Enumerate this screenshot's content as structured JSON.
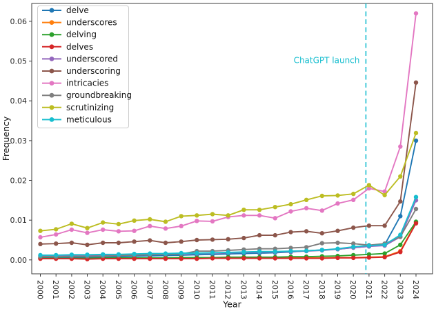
{
  "figure": {
    "background": "#ffffff"
  },
  "chart_data": {
    "type": "line",
    "title": "",
    "xlabel": "Year",
    "ylabel": "Frequency",
    "grid": false,
    "legend_position": "upper-left",
    "xlim": [
      1999.45,
      2025.06
    ],
    "ylim": [
      -0.0035,
      0.0645
    ],
    "x": [
      2000,
      2001,
      2002,
      2003,
      2004,
      2005,
      2006,
      2007,
      2008,
      2009,
      2010,
      2011,
      2012,
      2013,
      2014,
      2015,
      2016,
      2017,
      2018,
      2019,
      2020,
      2021,
      2022,
      2023,
      2024
    ],
    "x_tick_labels": [
      "2000",
      "2001",
      "2002",
      "2003",
      "2004",
      "2005",
      "2006",
      "2007",
      "2008",
      "2009",
      "2010",
      "2011",
      "2012",
      "2013",
      "2014",
      "2015",
      "2016",
      "2017",
      "2018",
      "2019",
      "2020",
      "2021",
      "2022",
      "2023",
      "2024"
    ],
    "y_ticks": [
      0.0,
      0.01,
      0.02,
      0.03,
      0.04,
      0.05,
      0.06
    ],
    "y_tick_labels": [
      "0.00",
      "0.01",
      "0.02",
      "0.03",
      "0.04",
      "0.05",
      "0.06"
    ],
    "annotation": {
      "text": "ChatGPT launch",
      "color": "#17becf",
      "x": 2020.8,
      "label_y": 0.0495,
      "style": "dashed-vertical"
    },
    "series": [
      {
        "name": "delve",
        "color": "#1f77b4",
        "values": [
          0.0006,
          0.0006,
          0.0007,
          0.0007,
          0.0007,
          0.0008,
          0.0009,
          0.001,
          0.0011,
          0.0012,
          0.0013,
          0.0014,
          0.0015,
          0.0016,
          0.0017,
          0.0018,
          0.002,
          0.0023,
          0.0025,
          0.0027,
          0.0031,
          0.0034,
          0.0038,
          0.011,
          0.03
        ]
      },
      {
        "name": "underscores",
        "color": "#ff7f0e",
        "values": [
          0.0004,
          0.0004,
          0.0004,
          0.0003,
          0.0004,
          0.0004,
          0.0004,
          0.0004,
          0.0004,
          0.0004,
          0.0004,
          0.0005,
          0.0005,
          0.0005,
          0.0005,
          0.0005,
          0.0005,
          0.0005,
          0.0005,
          0.0006,
          0.0006,
          0.0007,
          0.0008,
          0.0022,
          0.0094
        ]
      },
      {
        "name": "delving",
        "color": "#2ca02c",
        "values": [
          0.0004,
          0.0004,
          0.0004,
          0.0004,
          0.0005,
          0.0005,
          0.0005,
          0.0005,
          0.0005,
          0.0006,
          0.0006,
          0.0006,
          0.0007,
          0.0007,
          0.0007,
          0.0007,
          0.0008,
          0.0008,
          0.0009,
          0.001,
          0.0012,
          0.0014,
          0.0016,
          0.0038,
          0.0096
        ]
      },
      {
        "name": "delves",
        "color": "#d62728",
        "values": [
          0.0003,
          0.0003,
          0.0003,
          0.0002,
          0.0003,
          0.0003,
          0.0003,
          0.0003,
          0.0003,
          0.0003,
          0.0003,
          0.0004,
          0.0004,
          0.0004,
          0.0004,
          0.0004,
          0.0004,
          0.0004,
          0.0004,
          0.0005,
          0.0005,
          0.0006,
          0.0007,
          0.002,
          0.0092
        ]
      },
      {
        "name": "underscored",
        "color": "#9467bd",
        "values": [
          0.0011,
          0.0011,
          0.0012,
          0.0012,
          0.0013,
          0.0013,
          0.0014,
          0.0015,
          0.0015,
          0.0016,
          0.0016,
          0.0017,
          0.0018,
          0.0019,
          0.002,
          0.002,
          0.0021,
          0.0022,
          0.0024,
          0.0027,
          0.0031,
          0.0034,
          0.0036,
          0.0058,
          0.015
        ]
      },
      {
        "name": "underscoring",
        "color": "#8c564b",
        "values": [
          0.004,
          0.0041,
          0.0043,
          0.0038,
          0.0043,
          0.0043,
          0.0046,
          0.0049,
          0.0043,
          0.0046,
          0.005,
          0.0051,
          0.0052,
          0.0055,
          0.0062,
          0.0062,
          0.007,
          0.0072,
          0.0067,
          0.0073,
          0.0081,
          0.0086,
          0.0086,
          0.0147,
          0.0446
        ]
      },
      {
        "name": "intricacies",
        "color": "#e377c2",
        "values": [
          0.0057,
          0.0064,
          0.0076,
          0.0068,
          0.0076,
          0.0072,
          0.0073,
          0.0085,
          0.0079,
          0.0085,
          0.0098,
          0.0097,
          0.0108,
          0.0112,
          0.0112,
          0.0105,
          0.0122,
          0.013,
          0.0124,
          0.0142,
          0.0151,
          0.018,
          0.0172,
          0.0285,
          0.062
        ]
      },
      {
        "name": "groundbreaking",
        "color": "#7f7f7f",
        "values": [
          0.0008,
          0.0008,
          0.0009,
          0.0009,
          0.001,
          0.0011,
          0.0012,
          0.0013,
          0.0014,
          0.0015,
          0.0022,
          0.0022,
          0.0024,
          0.0026,
          0.0028,
          0.0028,
          0.003,
          0.0032,
          0.0042,
          0.0043,
          0.0041,
          0.0037,
          0.0041,
          0.0058,
          0.0128
        ]
      },
      {
        "name": "scrutinizing",
        "color": "#bcbd22",
        "values": [
          0.0073,
          0.0077,
          0.0091,
          0.008,
          0.0094,
          0.009,
          0.0099,
          0.0102,
          0.0096,
          0.011,
          0.0112,
          0.0115,
          0.0112,
          0.0126,
          0.0126,
          0.0133,
          0.014,
          0.0151,
          0.0161,
          0.0162,
          0.0166,
          0.0188,
          0.0163,
          0.021,
          0.0319
        ]
      },
      {
        "name": "meticulous",
        "color": "#17becf",
        "values": [
          0.0012,
          0.0012,
          0.0013,
          0.0013,
          0.0014,
          0.0014,
          0.0015,
          0.0016,
          0.0016,
          0.0017,
          0.0017,
          0.0018,
          0.0019,
          0.002,
          0.0021,
          0.0021,
          0.0022,
          0.0023,
          0.0025,
          0.0028,
          0.0033,
          0.0036,
          0.0038,
          0.0063,
          0.0158
        ]
      }
    ]
  }
}
